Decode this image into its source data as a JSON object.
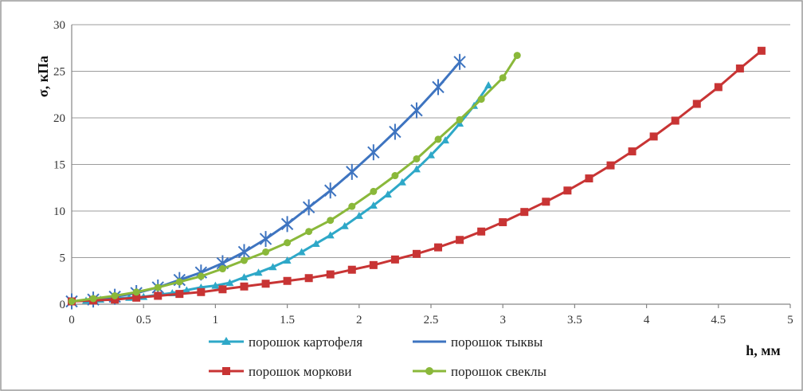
{
  "chart_data": {
    "type": "line",
    "title": "",
    "xlabel": "h, мм",
    "ylabel": "σ, кПа",
    "xlim": [
      0,
      5
    ],
    "ylim": [
      0,
      30
    ],
    "xticks": [
      "0",
      "0.5",
      "1",
      "1.5",
      "2",
      "2.5",
      "3",
      "3.5",
      "4",
      "4.5",
      "5"
    ],
    "yticks": [
      "0",
      "5",
      "10",
      "15",
      "20",
      "25",
      "30"
    ],
    "grid": "horizontal",
    "legend_position": "bottom",
    "series": [
      {
        "name": "порошок картофеля",
        "color": "#2ea8c8",
        "marker": "triangle",
        "x": [
          0,
          0.1,
          0.2,
          0.3,
          0.4,
          0.5,
          0.6,
          0.7,
          0.8,
          0.9,
          1.0,
          1.1,
          1.2,
          1.3,
          1.4,
          1.5,
          1.6,
          1.7,
          1.8,
          1.9,
          2.0,
          2.1,
          2.2,
          2.3,
          2.4,
          2.5,
          2.6,
          2.7,
          2.8,
          2.9
        ],
        "y": [
          0.3,
          0.4,
          0.5,
          0.6,
          0.7,
          0.8,
          1.0,
          1.2,
          1.5,
          1.8,
          2.0,
          2.3,
          2.9,
          3.4,
          4.0,
          4.7,
          5.6,
          6.5,
          7.4,
          8.4,
          9.5,
          10.6,
          11.8,
          13.1,
          14.5,
          16.0,
          17.6,
          19.4,
          21.3,
          23.5
        ]
      },
      {
        "name": "порошок тыквы",
        "color": "#3e74c0",
        "marker": "star",
        "x": [
          0,
          0.15,
          0.3,
          0.45,
          0.6,
          0.75,
          0.9,
          1.05,
          1.2,
          1.35,
          1.5,
          1.65,
          1.8,
          1.95,
          2.1,
          2.25,
          2.4,
          2.55,
          2.7
        ],
        "y": [
          0.3,
          0.5,
          0.8,
          1.2,
          1.8,
          2.6,
          3.4,
          4.4,
          5.6,
          7.0,
          8.6,
          10.4,
          12.2,
          14.2,
          16.3,
          18.5,
          20.8,
          23.3,
          26.0
        ]
      },
      {
        "name": "порошок моркови",
        "color": "#c83434",
        "marker": "square",
        "x": [
          0,
          0.15,
          0.3,
          0.45,
          0.6,
          0.75,
          0.9,
          1.05,
          1.2,
          1.35,
          1.5,
          1.65,
          1.8,
          1.95,
          2.1,
          2.25,
          2.4,
          2.55,
          2.7,
          2.85,
          3.0,
          3.15,
          3.3,
          3.45,
          3.6,
          3.75,
          3.9,
          4.05,
          4.2,
          4.35,
          4.5,
          4.65,
          4.8
        ],
        "y": [
          0.3,
          0.4,
          0.5,
          0.7,
          0.9,
          1.1,
          1.3,
          1.6,
          1.9,
          2.2,
          2.5,
          2.8,
          3.2,
          3.7,
          4.2,
          4.8,
          5.4,
          6.1,
          6.9,
          7.8,
          8.8,
          9.9,
          11.0,
          12.2,
          13.5,
          14.9,
          16.4,
          18.0,
          19.7,
          21.5,
          23.3,
          25.3,
          27.2
        ]
      },
      {
        "name": "порошок свеклы",
        "color": "#8ab83a",
        "marker": "circle",
        "x": [
          0,
          0.15,
          0.3,
          0.45,
          0.6,
          0.75,
          0.9,
          1.05,
          1.2,
          1.35,
          1.5,
          1.65,
          1.8,
          1.95,
          2.1,
          2.25,
          2.4,
          2.55,
          2.7,
          2.85,
          3.0,
          3.1
        ],
        "y": [
          0.3,
          0.6,
          0.9,
          1.3,
          1.8,
          2.4,
          3.0,
          3.8,
          4.7,
          5.6,
          6.6,
          7.8,
          9.0,
          10.5,
          12.1,
          13.8,
          15.6,
          17.7,
          19.8,
          22.0,
          24.3,
          26.7
        ]
      }
    ]
  }
}
